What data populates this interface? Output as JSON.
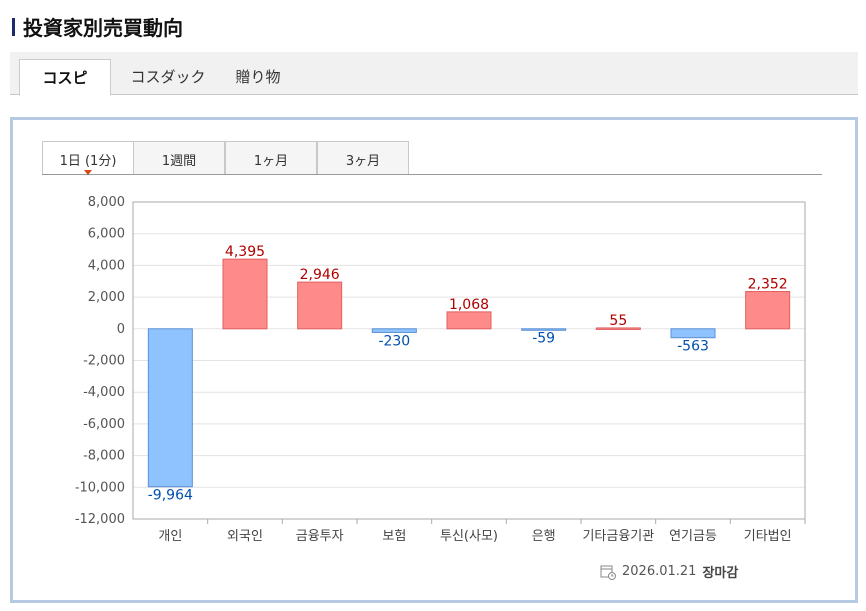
{
  "title": "投資家別売買動向",
  "market_tabs": [
    {
      "label": "コスピ",
      "active": true
    },
    {
      "label": "コスダック",
      "active": false
    },
    {
      "label": "贈り物",
      "active": false
    }
  ],
  "period_tabs": [
    {
      "label": "1日 (1分)",
      "active": true
    },
    {
      "label": "1週間",
      "active": false
    },
    {
      "label": "1ヶ月",
      "active": false
    },
    {
      "label": "3ヶ月",
      "active": false
    }
  ],
  "footer": {
    "date": "2026.01.21",
    "status": "장마감",
    "icon": "calendar-clock-icon"
  },
  "colors": {
    "positive": "#ff8a8a",
    "positive_label": "#b00000",
    "negative": "#8ec3ff",
    "negative_label": "#0050b0"
  },
  "chart_data": {
    "type": "bar",
    "categories": [
      "개인",
      "외국인",
      "금융투자",
      "보험",
      "투신(사모)",
      "은행",
      "기타금융기관",
      "연기금등",
      "기타법인"
    ],
    "values": [
      -9964,
      4395,
      2946,
      -230,
      1068,
      -59,
      55,
      -563,
      2352
    ],
    "value_labels": [
      "-9,964",
      "4,395",
      "2,946",
      "-230",
      "1,068",
      "-59",
      "55",
      "-563",
      "2,352"
    ],
    "ylim": [
      -12000,
      8000
    ],
    "yticks": [
      8000,
      6000,
      4000,
      2000,
      0,
      -2000,
      -4000,
      -6000,
      -8000,
      -10000,
      -12000
    ],
    "ytick_labels": [
      "8,000",
      "6,000",
      "4,000",
      "2,000",
      "0",
      "-2,000",
      "-4,000",
      "-6,000",
      "-8,000",
      "-10,000",
      "-12,000"
    ],
    "grid": true
  }
}
